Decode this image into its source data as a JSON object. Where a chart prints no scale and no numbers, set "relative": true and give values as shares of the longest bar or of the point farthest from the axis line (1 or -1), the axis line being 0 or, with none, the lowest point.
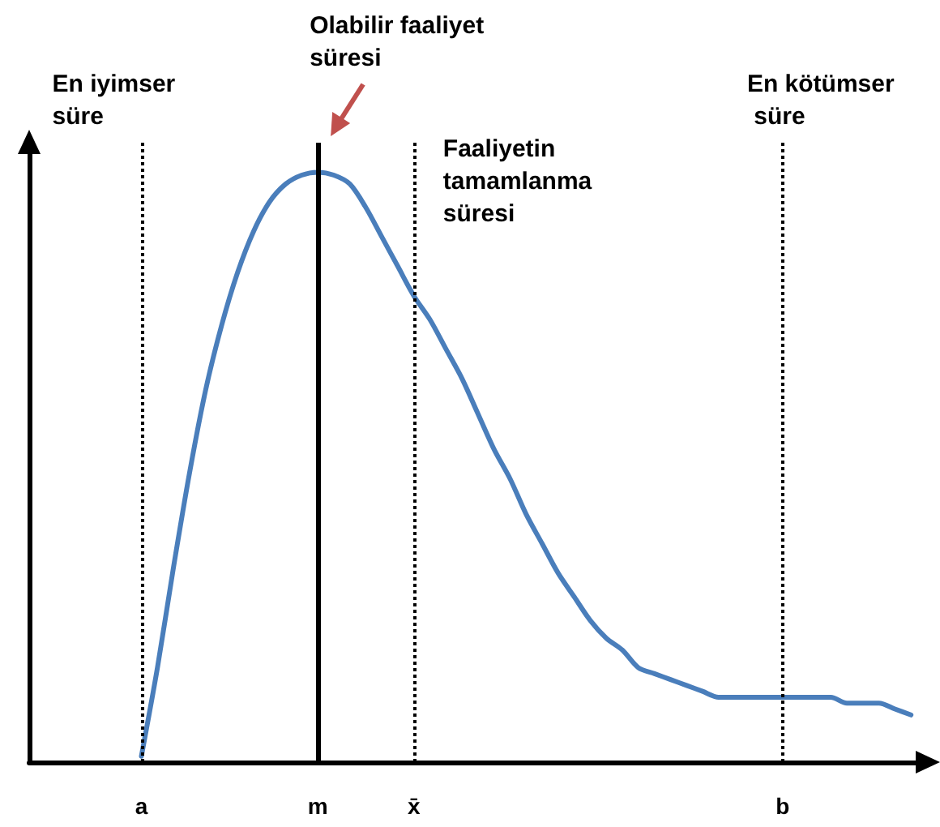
{
  "chart_data": {
    "type": "line",
    "relative": true,
    "grid": false,
    "marker": "none",
    "line_style": "solid",
    "categories": [
      null,
      null,
      null,
      null,
      null,
      null,
      null,
      "a",
      null,
      null,
      null,
      null,
      null,
      null,
      null,
      null,
      null,
      null,
      "m",
      null,
      null,
      null,
      null,
      null,
      "x̄",
      null,
      null,
      null,
      null,
      null,
      null,
      null,
      null,
      null,
      null,
      null,
      null,
      null,
      null,
      null,
      null,
      null,
      null,
      null,
      null,
      null,
      null,
      "b",
      null,
      null,
      null,
      null,
      null,
      null,
      null,
      null,
      null
    ],
    "series": [
      {
        "color": "#4a7ebb",
        "values": [
          null,
          null,
          null,
          null,
          null,
          null,
          null,
          0.01,
          0.16,
          0.33,
          0.49,
          0.63,
          0.74,
          0.83,
          0.9,
          0.95,
          0.98,
          0.995,
          1,
          0.995,
          0.98,
          0.94,
          0.89,
          0.84,
          0.79,
          0.75,
          0.7,
          0.65,
          0.59,
          0.53,
          0.48,
          0.42,
          0.37,
          0.32,
          0.28,
          0.24,
          0.21,
          0.19,
          0.16,
          0.15,
          0.14,
          0.13,
          0.12,
          0.11,
          0.11,
          0.11,
          0.11,
          0.11,
          0.11,
          0.11,
          0.11,
          0.1,
          0.1,
          0.1,
          0.09,
          0.08,
          null
        ]
      }
    ],
    "ref_lines": [
      {
        "axis": "x",
        "value": "a",
        "label": "En iyimser süre",
        "color": "#000000",
        "line_style": "dotted"
      },
      {
        "axis": "x",
        "value": "m",
        "label": "Olabilir faaliyet süresi",
        "color": "#000000",
        "line_style": "solid"
      },
      {
        "axis": "x",
        "value": "x̄",
        "label": "Faaliyetin tamamlanma süresi",
        "color": "#000000",
        "line_style": "dotted"
      },
      {
        "axis": "x",
        "value": "b",
        "label": "En kötümser süre",
        "color": "#000000",
        "line_style": "dotted"
      }
    ]
  }
}
